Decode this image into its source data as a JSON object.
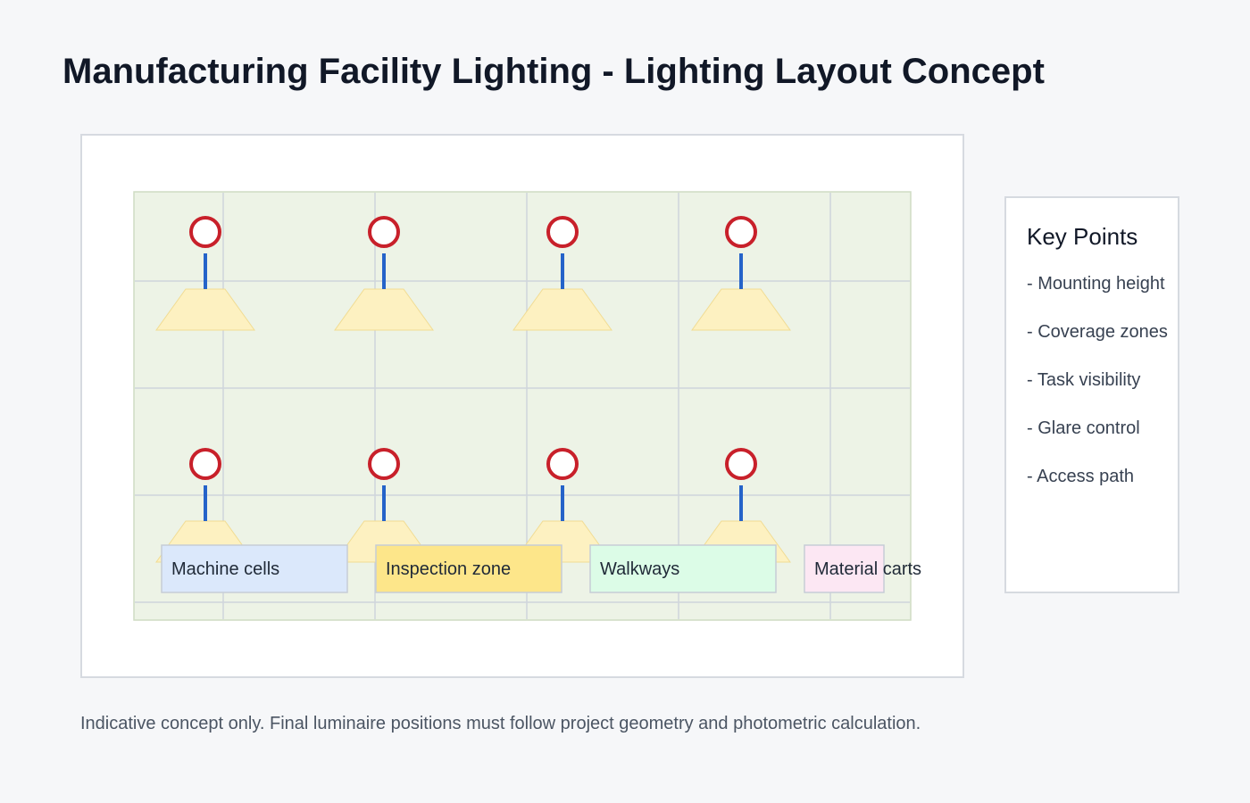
{
  "title": "Manufacturing Facility Lighting - Lighting Layout Concept",
  "diagram": {
    "luminaire_rows": 2,
    "luminaires_per_row": 4,
    "zones": [
      {
        "label": "Machine cells",
        "color": "#dbe8fb"
      },
      {
        "label": "Inspection zone",
        "color": "#fde68a"
      },
      {
        "label": "Walkways",
        "color": "#dcfce7"
      },
      {
        "label": "Material carts",
        "color": "#fce7f3"
      }
    ]
  },
  "key_points": {
    "heading": "Key Points",
    "items": [
      "- Mounting height",
      "- Coverage zones",
      "- Task visibility",
      "- Glare control",
      "- Access path"
    ]
  },
  "footnote": "Indicative concept only. Final luminaire positions must follow project geometry and photometric calculation.",
  "colors": {
    "floor": "#edf3e6",
    "grid": "#cfd5dc",
    "luminaire_ring": "#c8202a",
    "suspension": "#2563c9",
    "light_cone": "#fdf1c1",
    "light_cone_stroke": "#f1dc93"
  }
}
